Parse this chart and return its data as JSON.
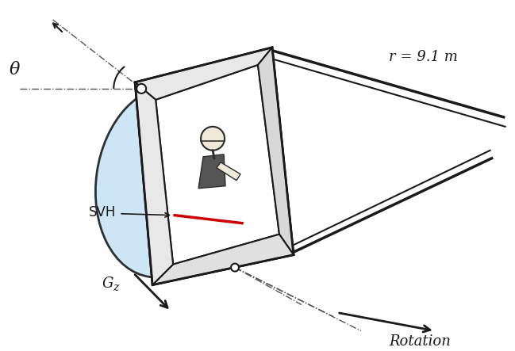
{
  "figsize": [
    6.49,
    4.43
  ],
  "dpi": 100,
  "background_color": "#ffffff",
  "ellipse_fill": "#c8e4f5",
  "ellipse_edge": "#1a1a1a",
  "gondola_edge": "#1a1a1a",
  "gondola_face": "#f5f5f5",
  "gondola_rim": "#e0e0e0",
  "arm_color": "#1a1a1a",
  "dash_color": "#666666",
  "red_color": "#cc0000",
  "arrow_color": "#1a1a1a",
  "label_theta": "θ",
  "label_svh": "SVH",
  "label_gz": "G",
  "label_gz_sub": "z",
  "label_rotation": "Rotation",
  "label_radius": "r = 9.1 m"
}
